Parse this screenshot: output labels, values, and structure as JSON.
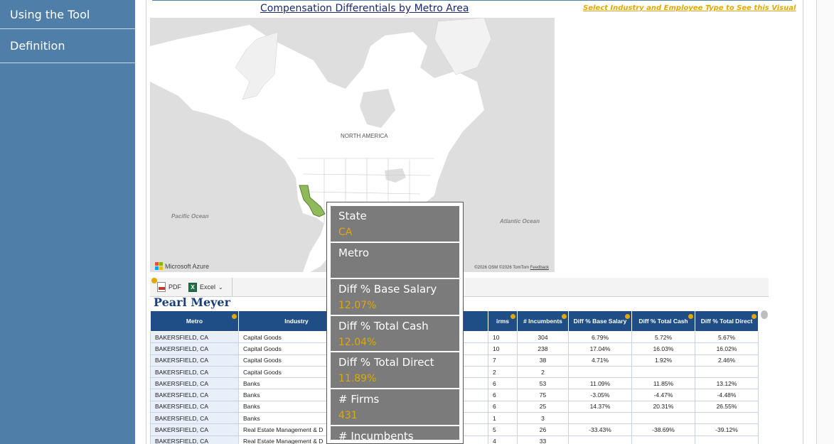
{
  "sidebar": {
    "items": [
      {
        "label": "Using the Tool"
      },
      {
        "label": "Definition"
      }
    ]
  },
  "map": {
    "title": "Compensation Differentials by Metro Area",
    "select_prompt": "Select Industry and Employee Type to See this Visual",
    "continent_label": "NORTH AMERICA",
    "pacific_label": "Pacific Ocean",
    "atlantic_label": "Atlantic Ocean",
    "attribution": "Microsoft Azure",
    "copyright": "©2026 OSM  ©2026 TomTom",
    "feedback": "Feedback",
    "colors": {
      "land": "#ffffff",
      "water": "#dedede",
      "highlight": "#8fba5a"
    }
  },
  "toolbar": {
    "pdf_label": "PDF",
    "excel_label": "Excel"
  },
  "brand": "Pearl Meyer",
  "table": {
    "columns": [
      "Metro",
      "Industry",
      "# Firms",
      "# Incumbents",
      "Diff % Base Salary",
      "Diff % Total Cash",
      "Diff % Total Direct"
    ],
    "visible_headers": [
      "Metro",
      "Industry",
      "irms",
      "# Incumbents",
      "Diff % Base Salary",
      "Diff % Total Cash",
      "Diff % Total Direct"
    ],
    "rows": [
      [
        "BAKERSFIELD, CA",
        "Capital Goods",
        "10",
        "304",
        "6.79%",
        "5.72%",
        "5.67%"
      ],
      [
        "BAKERSFIELD, CA",
        "Capital Goods",
        "10",
        "238",
        "17.04%",
        "16.03%",
        "16.02%"
      ],
      [
        "BAKERSFIELD, CA",
        "Capital Goods",
        "7",
        "38",
        "4.71%",
        "1.92%",
        "2.46%"
      ],
      [
        "BAKERSFIELD, CA",
        "Capital Goods",
        "2",
        "2",
        "",
        "",
        ""
      ],
      [
        "BAKERSFIELD, CA",
        "Banks",
        "6",
        "53",
        "11.09%",
        "11.85%",
        "13.12%"
      ],
      [
        "BAKERSFIELD, CA",
        "Banks",
        "6",
        "75",
        "-3.05%",
        "-4.47%",
        "-4.48%"
      ],
      [
        "BAKERSFIELD, CA",
        "Banks",
        "6",
        "25",
        "14.37%",
        "20.31%",
        "26.55%"
      ],
      [
        "BAKERSFIELD, CA",
        "Banks",
        "1",
        "3",
        "",
        "",
        ""
      ],
      [
        "BAKERSFIELD, CA",
        "Real Estate Management & D",
        "5",
        "26",
        "-33.43%",
        "-38.69%",
        "-39.12%"
      ],
      [
        "BAKERSFIELD, CA",
        "Real Estate Management & D",
        "4",
        "33",
        "",
        "",
        ""
      ]
    ]
  },
  "tooltip": {
    "fields": [
      {
        "label": "State",
        "value": "CA"
      },
      {
        "label": "Metro",
        "value": ""
      },
      {
        "label": "Diff % Base Salary",
        "value": "12.07%"
      },
      {
        "label": "Diff % Total Cash",
        "value": "12.04%"
      },
      {
        "label": "Diff % Total Direct",
        "value": "11.89%"
      },
      {
        "label": "# Firms",
        "value": "431"
      },
      {
        "label": "# Incumbents",
        "value": ""
      }
    ]
  }
}
